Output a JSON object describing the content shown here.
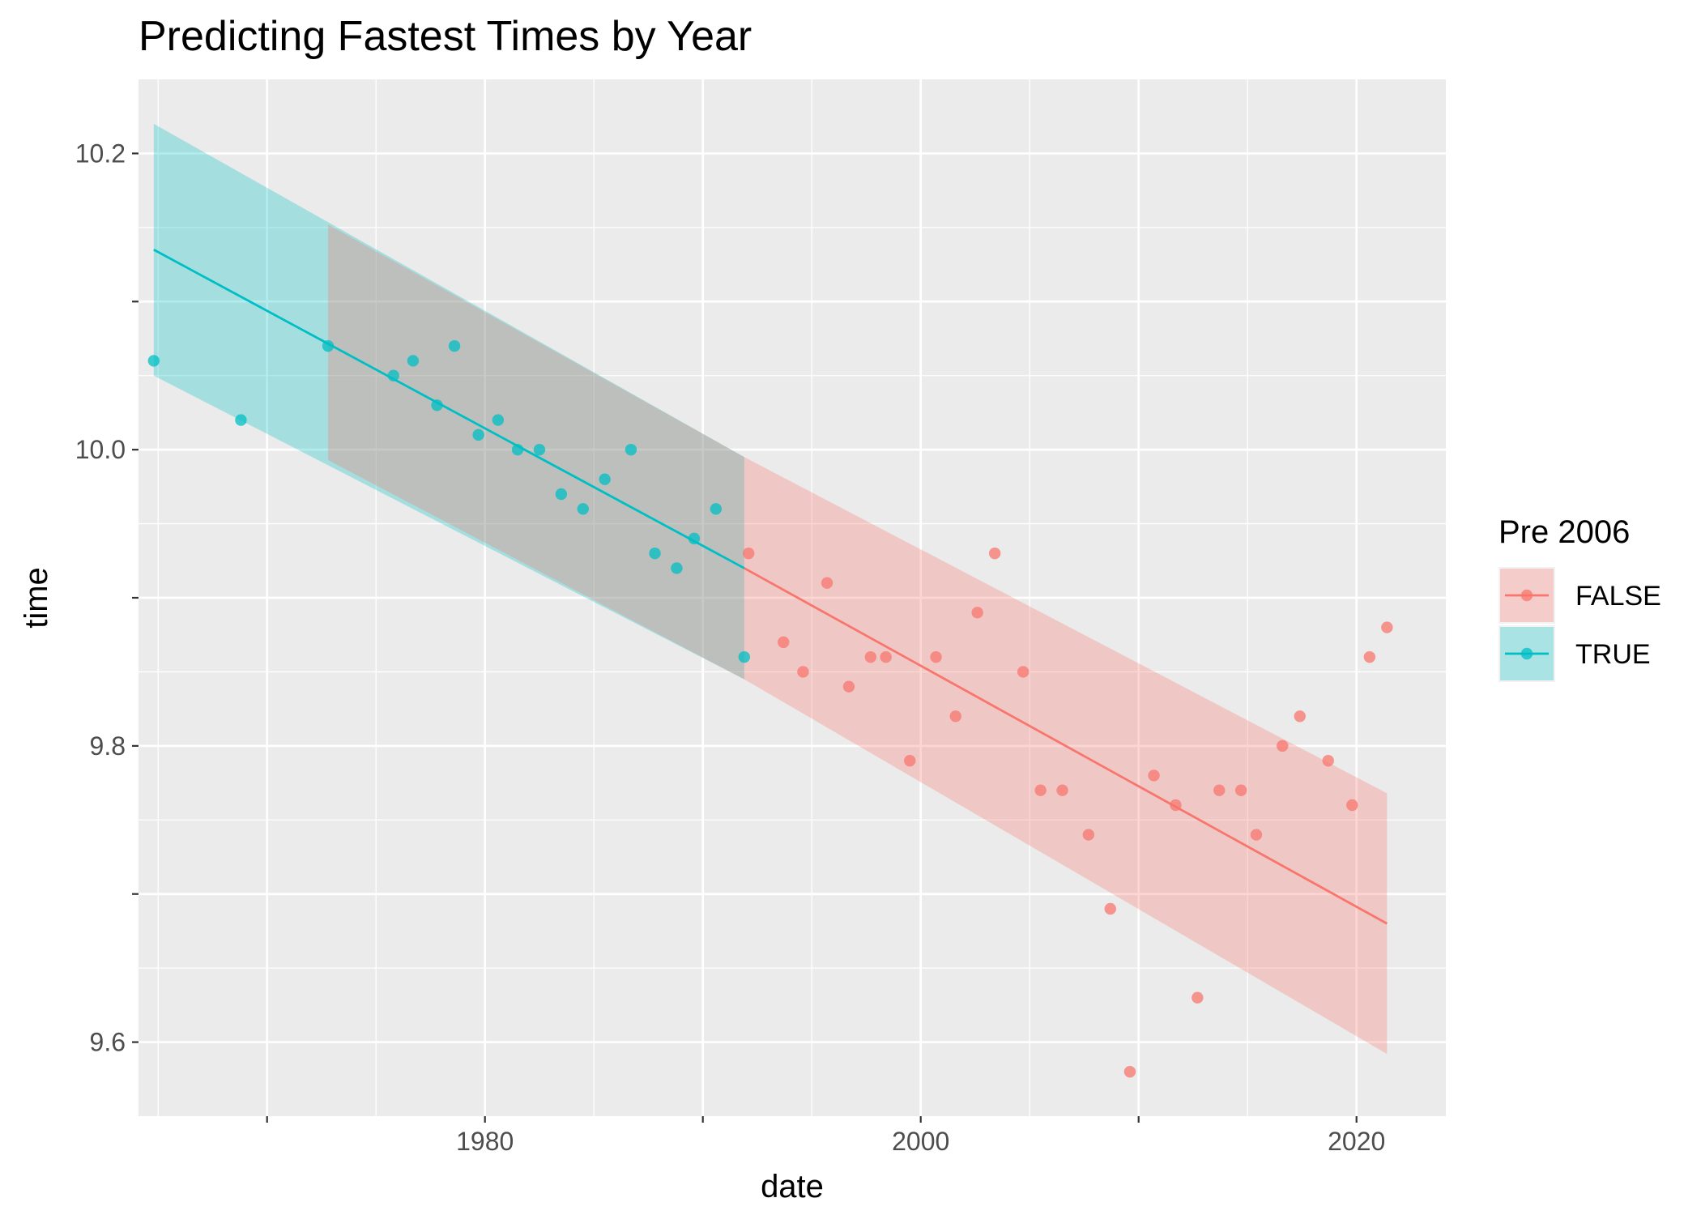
{
  "chart_data": {
    "type": "scatter",
    "title": "Predicting Fastest Times by Year",
    "xlabel": "date",
    "ylabel": "time",
    "xlim": [
      1964.1,
      2024.1
    ],
    "ylim": [
      9.55,
      10.25
    ],
    "x_ticks": [
      {
        "value": 1970,
        "label": ""
      },
      {
        "value": 1980,
        "label": "1980"
      },
      {
        "value": 1990,
        "label": ""
      },
      {
        "value": 2000,
        "label": "2000"
      },
      {
        "value": 2010,
        "label": ""
      },
      {
        "value": 2020,
        "label": "2020"
      }
    ],
    "y_ticks": [
      {
        "value": 9.6,
        "label": "9.6"
      },
      {
        "value": 9.7,
        "label": ""
      },
      {
        "value": 9.8,
        "label": "9.8"
      },
      {
        "value": 9.9,
        "label": ""
      },
      {
        "value": 10.0,
        "label": "10.0"
      },
      {
        "value": 10.1,
        "label": ""
      },
      {
        "value": 10.2,
        "label": "10.2"
      }
    ],
    "grid": true,
    "legend": {
      "title": "Pre 2006",
      "position": "right"
    },
    "series": [
      {
        "name": "FALSE",
        "color": "#F8766D",
        "points": [
          [
            1992.1,
            9.93
          ],
          [
            1993.7,
            9.87
          ],
          [
            1994.6,
            9.85
          ],
          [
            1995.7,
            9.91
          ],
          [
            1996.7,
            9.84
          ],
          [
            1997.7,
            9.86
          ],
          [
            1998.4,
            9.86
          ],
          [
            1999.5,
            9.79
          ],
          [
            2000.7,
            9.86
          ],
          [
            2001.6,
            9.82
          ],
          [
            2002.6,
            9.89
          ],
          [
            2003.4,
            9.93
          ],
          [
            2004.7,
            9.85
          ],
          [
            2005.5,
            9.77
          ],
          [
            2006.5,
            9.77
          ],
          [
            2007.7,
            9.74
          ],
          [
            2008.7,
            9.69
          ],
          [
            2009.6,
            9.58
          ],
          [
            2010.7,
            9.78
          ],
          [
            2011.7,
            9.76
          ],
          [
            2012.7,
            9.63
          ],
          [
            2013.7,
            9.77
          ],
          [
            2014.7,
            9.77
          ],
          [
            2015.4,
            9.74
          ],
          [
            2016.6,
            9.8
          ],
          [
            2017.4,
            9.82
          ],
          [
            2018.7,
            9.79
          ],
          [
            2019.8,
            9.76
          ],
          [
            2020.6,
            9.86
          ],
          [
            2021.4,
            9.88
          ]
        ],
        "fit": {
          "x": [
            1991.9,
            2021.4
          ],
          "y": [
            9.92,
            9.68
          ]
        },
        "band": {
          "x": [
            1991.9,
            2021.4
          ],
          "upper": [
            9.995,
            9.768
          ],
          "lower": [
            9.845,
            9.592
          ]
        }
      },
      {
        "name": "TRUE",
        "color": "#00BFC4",
        "points": [
          [
            1964.8,
            10.06
          ],
          [
            1968.8,
            10.02
          ],
          [
            1972.8,
            10.07
          ],
          [
            1975.8,
            10.05
          ],
          [
            1976.7,
            10.06
          ],
          [
            1977.8,
            10.03
          ],
          [
            1978.6,
            10.07
          ],
          [
            1979.7,
            10.01
          ],
          [
            1980.6,
            10.02
          ],
          [
            1981.5,
            10.0
          ],
          [
            1982.5,
            10.0
          ],
          [
            1983.5,
            9.97
          ],
          [
            1984.5,
            9.96
          ],
          [
            1985.5,
            9.98
          ],
          [
            1986.7,
            10.0
          ],
          [
            1987.8,
            9.93
          ],
          [
            1988.8,
            9.92
          ],
          [
            1989.6,
            9.94
          ],
          [
            1990.6,
            9.96
          ],
          [
            1991.9,
            9.86
          ]
        ],
        "fit": {
          "x": [
            1964.8,
            1991.9
          ],
          "y": [
            10.135,
            9.92
          ]
        },
        "band": {
          "x": [
            1964.8,
            1991.9
          ],
          "upper": [
            10.22,
            9.995
          ],
          "lower": [
            10.05,
            9.845
          ]
        }
      },
      {
        "name": "FALSE",
        "color": "#F8766D",
        "legend": false,
        "band": {
          "x": [
            1972.8,
            1991.9
          ],
          "upper": [
            10.152,
            9.995
          ],
          "lower": [
            9.993,
            9.845
          ]
        }
      }
    ]
  }
}
